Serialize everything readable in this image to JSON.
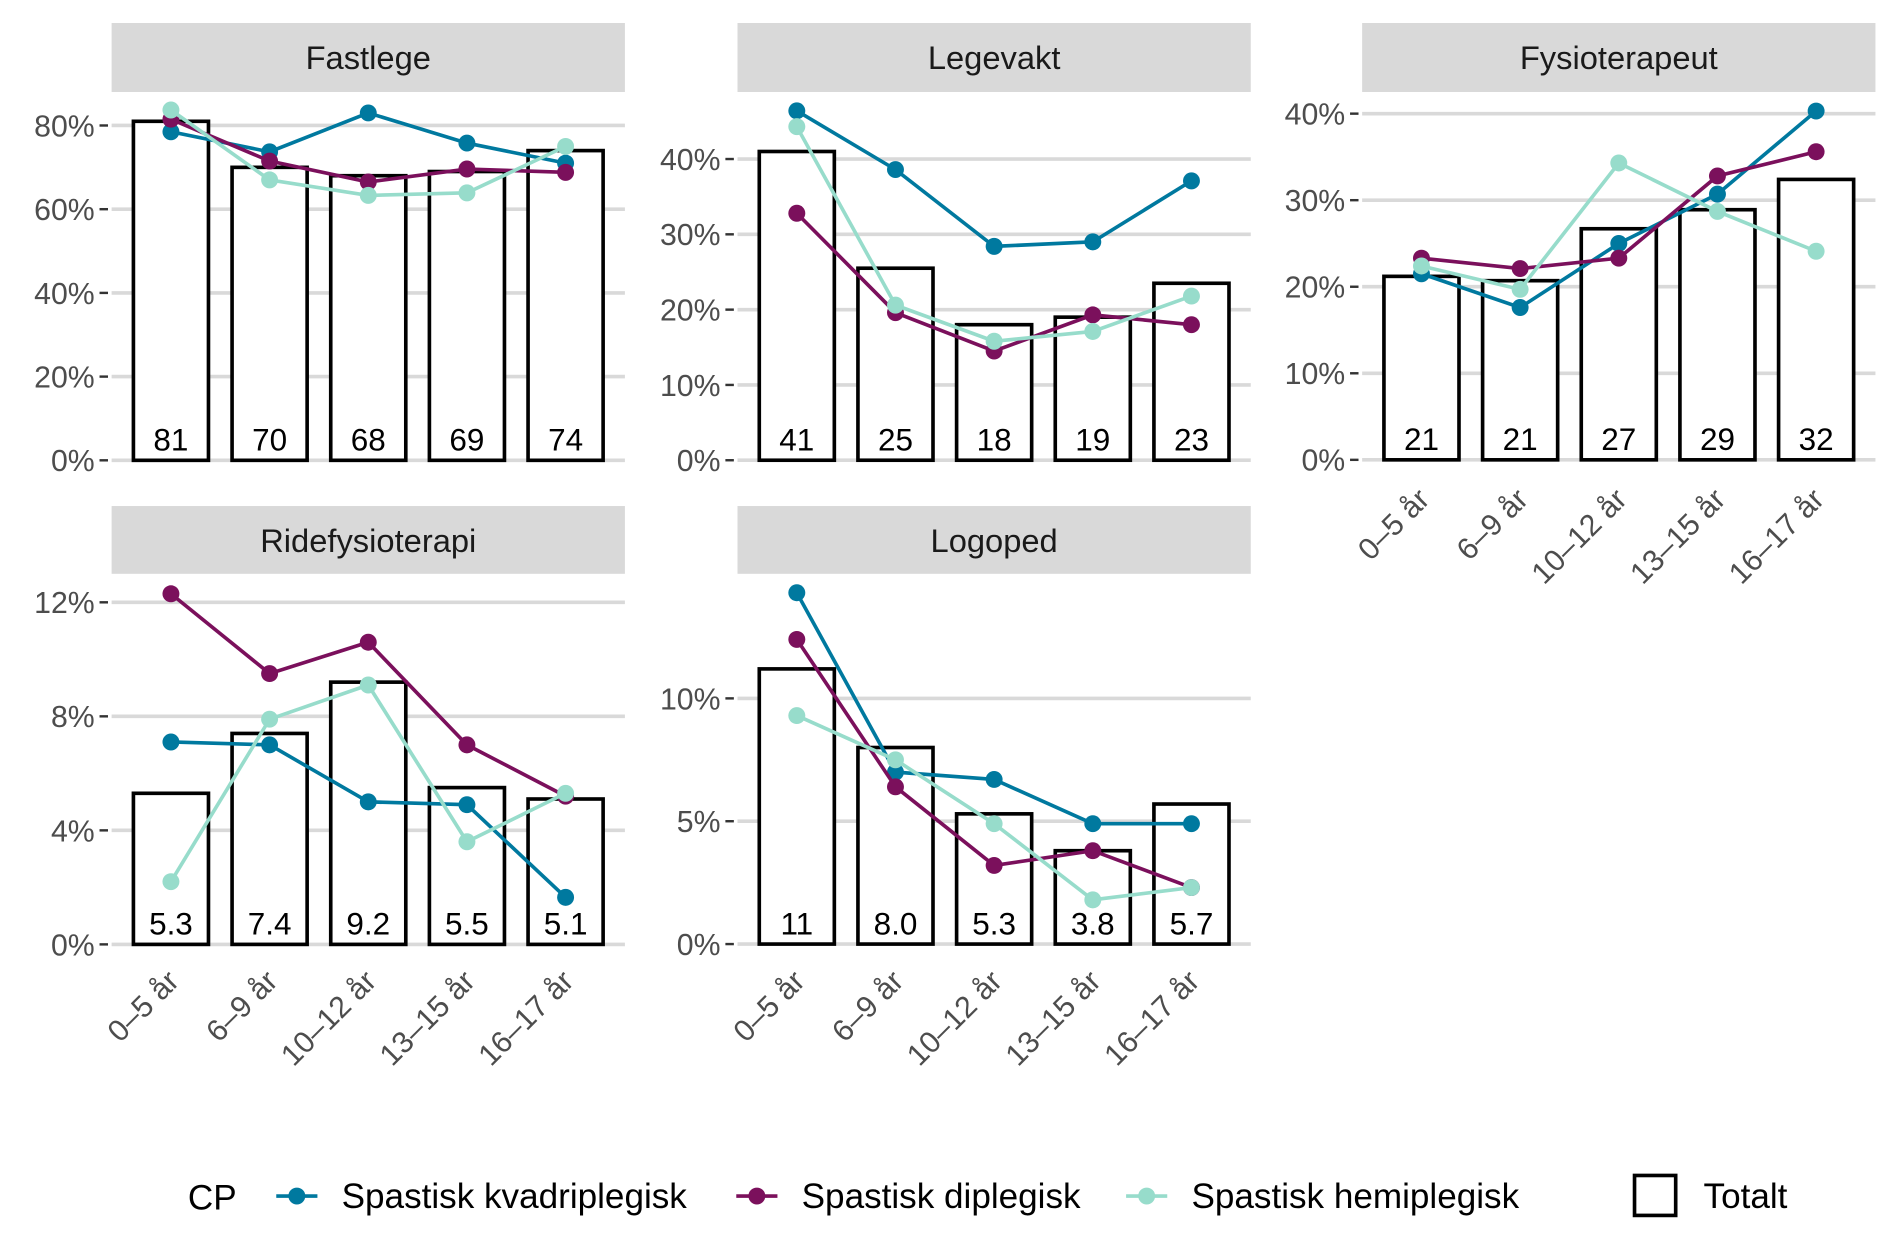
{
  "chart_data": {
    "type": "bar+line facets",
    "categories": [
      "0–5 år",
      "6–9 år",
      "10–12 år",
      "13–15 år",
      "16–17 år"
    ],
    "legend": {
      "title": "CP",
      "position": "bottom",
      "entries": [
        {
          "name": "Spastisk kvadriplegisk",
          "color": "#00799f",
          "kind": "line"
        },
        {
          "name": "Spastisk diplegisk",
          "color": "#7b105c",
          "kind": "line"
        },
        {
          "name": "Spastisk hemiplegisk",
          "color": "#97dccb",
          "kind": "line"
        },
        {
          "name": "Totalt",
          "kind": "bar"
        }
      ]
    },
    "grid": true,
    "panels": [
      {
        "title": "Fastlege",
        "ylim": [
          -3.4,
          88
        ],
        "yticks": [
          0,
          20,
          40,
          60,
          80
        ],
        "ytick_labels": [
          "0%",
          "20%",
          "40%",
          "60%",
          "80%"
        ],
        "totalt": [
          81,
          70,
          68,
          69,
          74
        ],
        "bar_labels": [
          "81",
          "70",
          "68",
          "69",
          "74"
        ],
        "series": {
          "Spastisk kvadriplegisk": [
            78.5,
            73.7,
            83,
            75.8,
            71
          ],
          "Spastisk diplegisk": [
            81.5,
            71.5,
            66.5,
            69.6,
            68.8
          ],
          "Spastisk hemiplegisk": [
            83.7,
            67,
            63.3,
            63.9,
            75
          ]
        }
      },
      {
        "title": "Legevakt",
        "ylim": [
          -1.9,
          48.9
        ],
        "yticks": [
          0,
          10,
          20,
          30,
          40
        ],
        "ytick_labels": [
          "0%",
          "10%",
          "20%",
          "30%",
          "40%"
        ],
        "totalt": [
          41,
          25.5,
          18,
          19,
          23.5
        ],
        "bar_labels": [
          "41",
          "25",
          "18",
          "19",
          "23"
        ],
        "series": {
          "Spastisk kvadriplegisk": [
            46.4,
            38.6,
            28.4,
            29,
            37.1
          ],
          "Spastisk diplegisk": [
            32.8,
            19.6,
            14.5,
            19.3,
            18
          ],
          "Spastisk hemiplegisk": [
            44.3,
            20.6,
            15.8,
            17.1,
            21.8
          ]
        }
      },
      {
        "title": "Fysioterapeut",
        "ylim": [
          -1.7,
          42.5
        ],
        "yticks": [
          0,
          10,
          20,
          30,
          40
        ],
        "ytick_labels": [
          "0%",
          "10%",
          "20%",
          "30%",
          "40%"
        ],
        "totalt": [
          21.2,
          20.7,
          26.7,
          28.9,
          32.4
        ],
        "bar_labels": [
          "21",
          "21",
          "27",
          "29",
          "32"
        ],
        "series": {
          "Spastisk kvadriplegisk": [
            21.5,
            17.6,
            25,
            30.7,
            40.3
          ],
          "Spastisk diplegisk": [
            23.3,
            22.1,
            23.3,
            32.8,
            35.6
          ],
          "Spastisk hemiplegisk": [
            22.4,
            19.7,
            34.3,
            28.7,
            24.1
          ]
        }
      },
      {
        "title": "Ridefysioterapi",
        "ylim": [
          -0.42,
          13
        ],
        "yticks": [
          0,
          4,
          8,
          12
        ],
        "ytick_labels": [
          "0%",
          "4%",
          "8%",
          "12%"
        ],
        "totalt": [
          5.3,
          7.4,
          9.2,
          5.5,
          5.1
        ],
        "bar_labels": [
          "5.3",
          "7.4",
          "9.2",
          "5.5",
          "5.1"
        ],
        "series": {
          "Spastisk kvadriplegisk": [
            7.1,
            7.0,
            5.0,
            4.9,
            1.65
          ],
          "Spastisk diplegisk": [
            12.3,
            9.5,
            10.6,
            7.0,
            5.2
          ],
          "Spastisk hemiplegisk": [
            2.2,
            7.9,
            9.1,
            3.6,
            5.3
          ]
        }
      },
      {
        "title": "Logoped",
        "ylim": [
          -0.5,
          15.07
        ],
        "yticks": [
          0,
          5,
          10
        ],
        "ytick_labels": [
          "0%",
          "5%",
          "10%"
        ],
        "totalt": [
          11.2,
          8.0,
          5.3,
          3.8,
          5.7
        ],
        "bar_labels": [
          "11",
          "8.0",
          "5.3",
          "3.8",
          "5.7"
        ],
        "series": {
          "Spastisk kvadriplegisk": [
            14.3,
            7.0,
            6.7,
            4.9,
            4.9
          ],
          "Spastisk diplegisk": [
            12.4,
            6.4,
            3.2,
            3.8,
            2.3
          ],
          "Spastisk hemiplegisk": [
            9.3,
            7.5,
            4.9,
            1.8,
            2.3
          ]
        }
      }
    ]
  }
}
